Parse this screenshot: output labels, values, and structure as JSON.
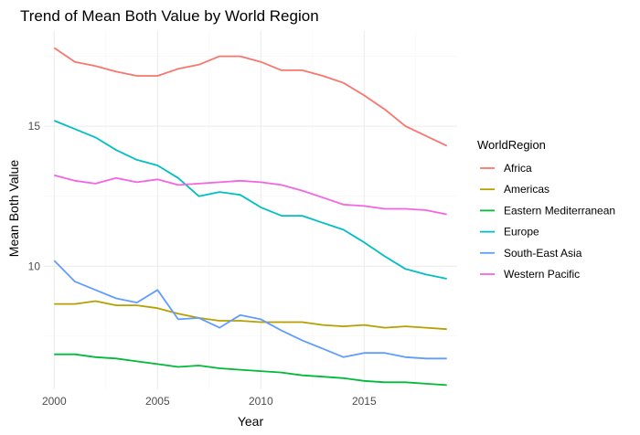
{
  "chart_data": {
    "type": "line",
    "title": "Trend of Mean Both Value by World Region",
    "xlabel": "Year",
    "ylabel": "Mean Both Value",
    "xlim": [
      1999.5,
      2019.5
    ],
    "ylim": [
      5.6,
      18.4
    ],
    "x_ticks": [
      2000,
      2005,
      2010,
      2015
    ],
    "y_ticks": [
      10,
      15
    ],
    "grid": true,
    "legend": {
      "title": "WorldRegion",
      "position": "right"
    },
    "x": [
      2000,
      2001,
      2002,
      2003,
      2004,
      2005,
      2006,
      2007,
      2008,
      2009,
      2010,
      2011,
      2012,
      2013,
      2014,
      2015,
      2016,
      2017,
      2018,
      2019
    ],
    "series": [
      {
        "name": "Africa",
        "color": "#F8766D",
        "values": [
          17.8,
          17.3,
          17.15,
          16.95,
          16.8,
          16.8,
          17.05,
          17.2,
          17.5,
          17.5,
          17.3,
          17.0,
          17.0,
          16.8,
          16.55,
          16.1,
          15.6,
          15.0,
          14.65,
          14.3
        ]
      },
      {
        "name": "Americas",
        "color": "#B79F00",
        "values": [
          8.65,
          8.65,
          8.75,
          8.6,
          8.6,
          8.5,
          8.3,
          8.15,
          8.05,
          8.05,
          8.0,
          8.0,
          8.0,
          7.9,
          7.85,
          7.9,
          7.8,
          7.85,
          7.8,
          7.75
        ]
      },
      {
        "name": "Eastern Mediterranean",
        "color": "#00BA38",
        "values": [
          6.85,
          6.85,
          6.75,
          6.7,
          6.6,
          6.5,
          6.4,
          6.45,
          6.35,
          6.3,
          6.25,
          6.2,
          6.1,
          6.05,
          6.0,
          5.9,
          5.85,
          5.85,
          5.8,
          5.75
        ]
      },
      {
        "name": "Europe",
        "color": "#00BFC4",
        "values": [
          15.2,
          14.9,
          14.6,
          14.15,
          13.8,
          13.6,
          13.15,
          12.5,
          12.65,
          12.55,
          12.1,
          11.8,
          11.8,
          11.55,
          11.3,
          10.85,
          10.35,
          9.9,
          9.7,
          9.55
        ]
      },
      {
        "name": "South-East Asia",
        "color": "#619CFF",
        "values": [
          10.2,
          9.45,
          9.15,
          8.85,
          8.7,
          9.15,
          8.1,
          8.15,
          7.8,
          8.25,
          8.1,
          7.7,
          7.35,
          7.05,
          6.75,
          6.9,
          6.9,
          6.75,
          6.7,
          6.7
        ]
      },
      {
        "name": "Western Pacific",
        "color": "#F564E3",
        "values": [
          13.25,
          13.05,
          12.95,
          13.15,
          13.0,
          13.1,
          12.9,
          12.95,
          13.0,
          13.05,
          13.0,
          12.9,
          12.7,
          12.45,
          12.2,
          12.15,
          12.05,
          12.05,
          12.0,
          11.85
        ]
      }
    ]
  }
}
